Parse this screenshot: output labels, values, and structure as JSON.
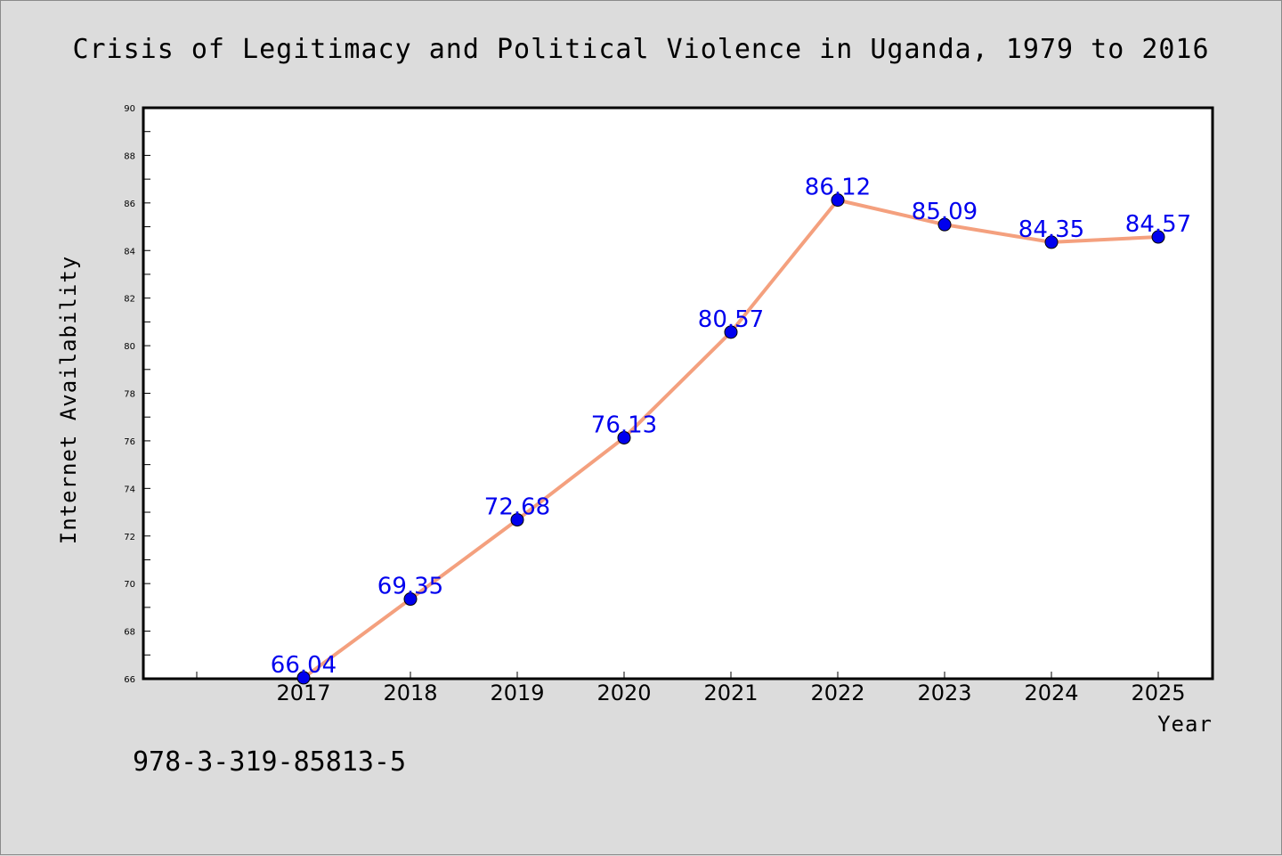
{
  "chart_data": {
    "type": "line",
    "title": "Crisis of Legitimacy and Political Violence in Uganda, 1979 to 2016",
    "xlabel": "Year",
    "ylabel": "Internet Availability",
    "categories": [
      "2017",
      "2018",
      "2019",
      "2020",
      "2021",
      "2022",
      "2023",
      "2024",
      "2025"
    ],
    "series": [
      {
        "values": [
          66.04,
          69.35,
          72.68,
          76.13,
          80.57,
          86.12,
          85.09,
          84.35,
          84.57
        ],
        "data_labels": [
          "66.04",
          "69.35",
          "72.68",
          "76.13",
          "80.57",
          "86.12",
          "85.09",
          "84.35",
          "84.57"
        ],
        "line_color": "#f4a07e",
        "marker_color": "#0000ee"
      }
    ],
    "ylim": [
      66,
      90
    ],
    "yticks": [
      "66",
      "68",
      "70",
      "72",
      "74",
      "76",
      "78",
      "80",
      "82",
      "84",
      "86",
      "88",
      "90"
    ],
    "grid": false,
    "legend": "none"
  },
  "footnote": "978-3-319-85813-5",
  "colors": {
    "background": "#dcdcdc",
    "plot_background": "#ffffff",
    "label_color": "#0000ee"
  }
}
